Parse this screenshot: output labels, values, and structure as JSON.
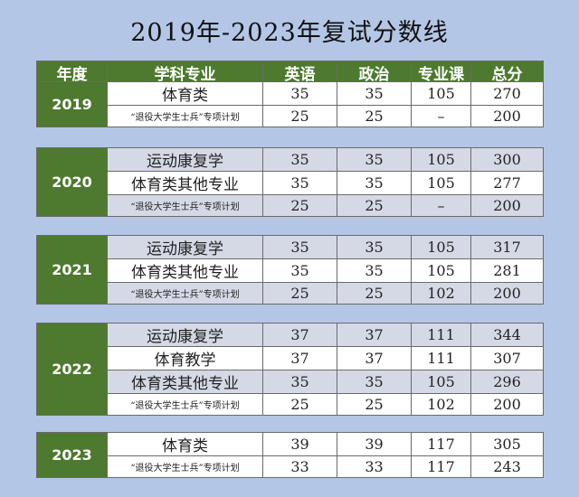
{
  "title": "2019年-2023年复试分数线",
  "headers": [
    "年度",
    "学科专业",
    "英语",
    "政治",
    "专业课",
    "总分"
  ],
  "groups": [
    {
      "year": "2019",
      "rows": [
        {
          "subject": "体育类",
          "english": "35",
          "politics": "35",
          "major": "105",
          "total": "270",
          "small": false
        },
        {
          "subject": "“退役大学生士兵”专项计划",
          "english": "25",
          "politics": "25",
          "major": "–",
          "total": "200",
          "small": true
        }
      ]
    },
    {
      "year": "2020",
      "rows": [
        {
          "subject": "运动康复学",
          "english": "35",
          "politics": "35",
          "major": "105",
          "total": "300",
          "small": false
        },
        {
          "subject": "体育类其他专业",
          "english": "35",
          "politics": "35",
          "major": "105",
          "total": "277",
          "small": false
        },
        {
          "subject": "“退役大学生士兵”专项计划",
          "english": "25",
          "politics": "25",
          "major": "–",
          "total": "200",
          "small": true
        }
      ]
    },
    {
      "year": "2021",
      "rows": [
        {
          "subject": "运动康复学",
          "english": "35",
          "politics": "35",
          "major": "105",
          "total": "317",
          "small": false
        },
        {
          "subject": "体育类其他专业",
          "english": "35",
          "politics": "35",
          "major": "105",
          "total": "281",
          "small": false
        },
        {
          "subject": "“退役大学生士兵”专项计划",
          "english": "25",
          "politics": "25",
          "major": "102",
          "total": "200",
          "small": true
        }
      ]
    },
    {
      "year": "2022",
      "rows": [
        {
          "subject": "运动康复学",
          "english": "37",
          "politics": "37",
          "major": "111",
          "total": "344",
          "small": false
        },
        {
          "subject": "体育教学",
          "english": "37",
          "politics": "37",
          "major": "111",
          "total": "307",
          "small": false
        },
        {
          "subject": "体育类其他专业",
          "english": "35",
          "politics": "35",
          "major": "105",
          "total": "296",
          "small": false
        },
        {
          "subject": "“退役大学生士兵”专项计划",
          "english": "25",
          "politics": "25",
          "major": "102",
          "total": "200",
          "small": true
        }
      ]
    },
    {
      "year": "2023",
      "rows": [
        {
          "subject": "体育类",
          "english": "39",
          "politics": "39",
          "major": "117",
          "total": "305",
          "small": false
        },
        {
          "subject": "“退役大学生士兵”专项计划",
          "english": "33",
          "politics": "33",
          "major": "117",
          "total": "243",
          "small": true
        }
      ]
    }
  ]
}
